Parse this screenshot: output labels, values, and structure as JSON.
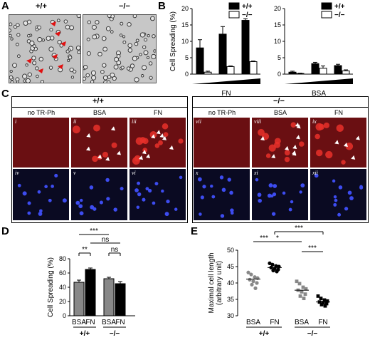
{
  "panels": {
    "A": {
      "letter": "A",
      "wt": "+/+",
      "ko": "−/−"
    },
    "B": {
      "letter": "B"
    },
    "C": {
      "letter": "C"
    },
    "D": {
      "letter": "D"
    },
    "E": {
      "letter": "E"
    }
  },
  "C": {
    "wt_label": "+/+",
    "ko_label": "−/−",
    "col_heads": [
      "no TR-Ph",
      "BSA",
      "FN",
      "no TR-Ph",
      "BSA",
      "FN"
    ],
    "numerals_top": [
      "i",
      "ii",
      "iii",
      "vii",
      "viii",
      "ix"
    ],
    "numerals_bottom": [
      "iv",
      "v",
      "vi",
      "x",
      "xi",
      "xii"
    ]
  },
  "chart_data": [
    {
      "type": "bar",
      "panel": "B-left",
      "ylabel": "Cell Spreading (%)",
      "xlabel": "FN",
      "ylim": [
        0,
        20
      ],
      "yticks": [
        "0",
        "5",
        "10",
        "15",
        "20"
      ],
      "legend": [
        "+/+",
        "−/−"
      ],
      "legend_colors": [
        "#000000",
        "#ffffff"
      ],
      "groups": 3,
      "series": [
        {
          "name": "+/+",
          "values": [
            8,
            12.2,
            16.4
          ],
          "errors": [
            2.5,
            2.3,
            0.5
          ]
        },
        {
          "name": "−/−",
          "values": [
            0.6,
            2.3,
            3.8
          ],
          "errors": [
            0.3,
            0.2,
            0.2
          ]
        }
      ]
    },
    {
      "type": "bar",
      "panel": "B-right",
      "ylabel": "",
      "xlabel": "BSA",
      "ylim": [
        0,
        20
      ],
      "yticks": [
        "0",
        "5",
        "10",
        "15",
        "20"
      ],
      "legend": [
        "+/+",
        "−/−"
      ],
      "legend_colors": [
        "#000000",
        "#ffffff"
      ],
      "groups": 3,
      "series": [
        {
          "name": "+/+",
          "values": [
            0.6,
            3.2,
            2.6
          ],
          "errors": [
            0.3,
            0.4,
            0.4
          ]
        },
        {
          "name": "−/−",
          "values": [
            0.2,
            1.8,
            1.0
          ],
          "errors": [
            0.1,
            0.7,
            0.3
          ]
        }
      ]
    },
    {
      "type": "bar",
      "panel": "D",
      "ylabel": "Cell Spreading (%)",
      "ylim": [
        0,
        80
      ],
      "yticks": [
        "0",
        "20",
        "40",
        "60",
        "80"
      ],
      "categories": [
        "BSA",
        "FN",
        "BSA",
        "FN"
      ],
      "groups": [
        "+/+",
        "−/−"
      ],
      "values": [
        47,
        65,
        52,
        45
      ],
      "errors": [
        3,
        2,
        2,
        3
      ],
      "colors": [
        "#888888",
        "#000000",
        "#888888",
        "#000000"
      ],
      "significance": [
        {
          "label": "***",
          "from": 0,
          "to": 2
        },
        {
          "label": "ns",
          "from": 1,
          "to": 3
        },
        {
          "label": "**",
          "from": 0,
          "to": 1
        },
        {
          "label": "ns",
          "from": 2,
          "to": 3
        }
      ]
    },
    {
      "type": "scatter",
      "panel": "E",
      "ylabel": "Maximal cell length\n(arbitrary unit)",
      "ylim": [
        30,
        50
      ],
      "yticks": [
        "30",
        "35",
        "40",
        "45",
        "50"
      ],
      "categories": [
        "BSA",
        "FN",
        "BSA",
        "FN"
      ],
      "groups": [
        "+/+",
        "−/−"
      ],
      "colors": [
        "#888888",
        "#000000",
        "#888888",
        "#000000"
      ],
      "markers": [
        "circle",
        "circle",
        "square",
        "square"
      ],
      "means": [
        41.2,
        44.7,
        37.8,
        34.2
      ],
      "points": [
        [
          43.2,
          42.6,
          41.8,
          41.5,
          41.0,
          40.5,
          40.0,
          39.5,
          38.4
        ],
        [
          46.0,
          45.6,
          45.2,
          45.0,
          44.7,
          44.4,
          44.1,
          43.8,
          43.5
        ],
        [
          40.5,
          39.8,
          38.7,
          38.2,
          37.8,
          37.3,
          36.6,
          36.0,
          35.3
        ],
        [
          36.0,
          35.3,
          34.8,
          34.5,
          34.2,
          34.0,
          33.7,
          33.4,
          33.0
        ]
      ],
      "significance": [
        {
          "label": "***",
          "from": 1,
          "to": 3
        },
        {
          "label": "***",
          "from": 0,
          "to": 1
        },
        {
          "label": "*",
          "from": 0,
          "to": 2
        },
        {
          "label": "***",
          "from": 2,
          "to": 3
        }
      ]
    }
  ]
}
